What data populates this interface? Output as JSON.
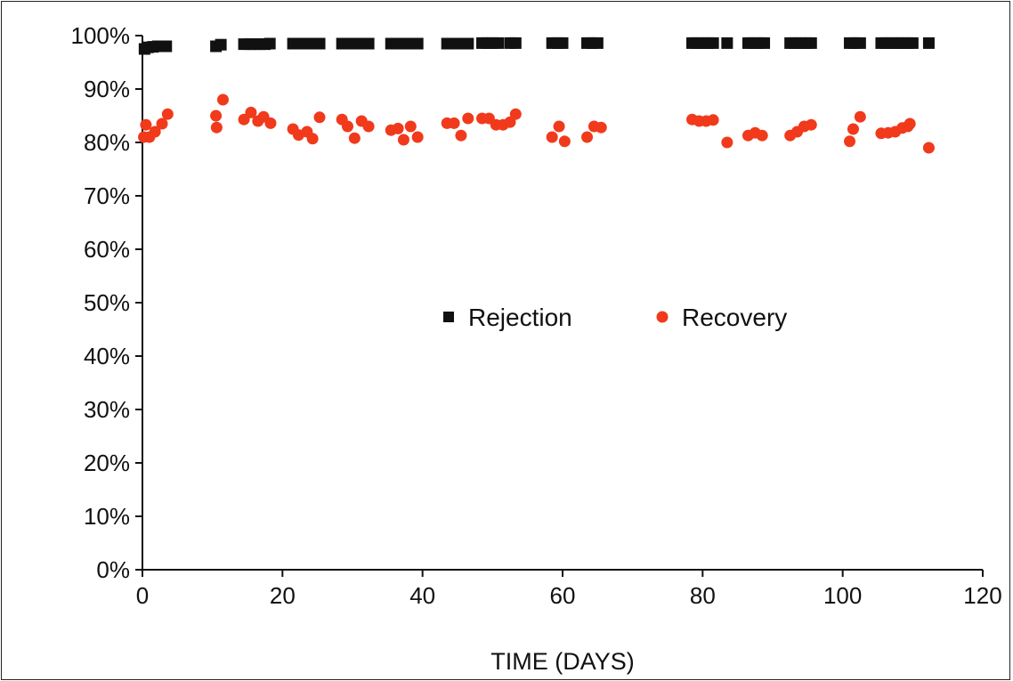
{
  "chart_data": {
    "type": "scatter",
    "title": "",
    "xlabel": "TIME (DAYS)",
    "ylabel": "",
    "xlim": [
      0,
      120
    ],
    "ylim": [
      0,
      100
    ],
    "x_ticks": [
      "0",
      "20",
      "40",
      "60",
      "80",
      "100",
      "120"
    ],
    "y_ticks": [
      "0%",
      "10%",
      "20%",
      "30%",
      "40%",
      "50%",
      "60%",
      "70%",
      "80%",
      "90%",
      "100%"
    ],
    "grid": false,
    "legend_position": "center",
    "colors": {
      "Rejection": "#111111",
      "Recovery": "#f03a1b"
    },
    "series": [
      {
        "name": "Rejection",
        "marker": "square",
        "points": [
          [
            0.3,
            97.5
          ],
          [
            0.8,
            97.8
          ],
          [
            1.5,
            97.9
          ],
          [
            2.2,
            98.0
          ],
          [
            2.8,
            98.0
          ],
          [
            3.4,
            98.0
          ],
          [
            10.5,
            98.0
          ],
          [
            11.2,
            98.3
          ],
          [
            14.5,
            98.4
          ],
          [
            15.3,
            98.4
          ],
          [
            16.0,
            98.4
          ],
          [
            16.8,
            98.4
          ],
          [
            17.5,
            98.4
          ],
          [
            18.2,
            98.5
          ],
          [
            21.5,
            98.5
          ],
          [
            22.2,
            98.5
          ],
          [
            23.0,
            98.5
          ],
          [
            23.8,
            98.5
          ],
          [
            24.5,
            98.5
          ],
          [
            25.3,
            98.5
          ],
          [
            28.5,
            98.5
          ],
          [
            29.2,
            98.5
          ],
          [
            30.0,
            98.5
          ],
          [
            30.8,
            98.5
          ],
          [
            31.5,
            98.5
          ],
          [
            32.3,
            98.5
          ],
          [
            35.5,
            98.5
          ],
          [
            36.2,
            98.5
          ],
          [
            37.0,
            98.5
          ],
          [
            37.8,
            98.5
          ],
          [
            38.5,
            98.5
          ],
          [
            39.3,
            98.5
          ],
          [
            43.5,
            98.5
          ],
          [
            44.2,
            98.5
          ],
          [
            45.0,
            98.5
          ],
          [
            45.8,
            98.5
          ],
          [
            46.5,
            98.5
          ],
          [
            48.5,
            98.6
          ],
          [
            49.2,
            98.6
          ],
          [
            50.0,
            98.6
          ],
          [
            50.8,
            98.6
          ],
          [
            52.5,
            98.6
          ],
          [
            53.3,
            98.6
          ],
          [
            58.5,
            98.6
          ],
          [
            59.3,
            98.6
          ],
          [
            60.0,
            98.6
          ],
          [
            63.5,
            98.6
          ],
          [
            64.2,
            98.6
          ],
          [
            65.0,
            98.6
          ],
          [
            78.5,
            98.6
          ],
          [
            79.2,
            98.6
          ],
          [
            80.0,
            98.6
          ],
          [
            80.8,
            98.6
          ],
          [
            81.5,
            98.6
          ],
          [
            83.5,
            98.6
          ],
          [
            86.5,
            98.6
          ],
          [
            87.2,
            98.6
          ],
          [
            88.0,
            98.6
          ],
          [
            88.8,
            98.6
          ],
          [
            92.5,
            98.6
          ],
          [
            93.2,
            98.6
          ],
          [
            94.0,
            98.6
          ],
          [
            94.8,
            98.6
          ],
          [
            95.5,
            98.6
          ],
          [
            101.0,
            98.6
          ],
          [
            101.7,
            98.6
          ],
          [
            102.5,
            98.6
          ],
          [
            105.5,
            98.6
          ],
          [
            106.2,
            98.6
          ],
          [
            107.0,
            98.6
          ],
          [
            107.8,
            98.6
          ],
          [
            108.5,
            98.6
          ],
          [
            109.3,
            98.6
          ],
          [
            110.0,
            98.6
          ],
          [
            112.3,
            98.6
          ]
        ]
      },
      {
        "name": "Recovery",
        "marker": "circle",
        "points": [
          [
            0.2,
            81.0
          ],
          [
            0.5,
            83.3
          ],
          [
            1.0,
            81.0
          ],
          [
            1.8,
            82.0
          ],
          [
            2.8,
            83.5
          ],
          [
            3.6,
            85.3
          ],
          [
            10.5,
            85.0
          ],
          [
            10.6,
            82.8
          ],
          [
            11.5,
            88.0
          ],
          [
            14.5,
            84.3
          ],
          [
            15.5,
            85.6
          ],
          [
            16.5,
            84.0
          ],
          [
            17.3,
            84.8
          ],
          [
            18.3,
            83.6
          ],
          [
            21.5,
            82.5
          ],
          [
            22.3,
            81.4
          ],
          [
            23.5,
            82.0
          ],
          [
            24.3,
            80.7
          ],
          [
            25.3,
            84.7
          ],
          [
            28.5,
            84.3
          ],
          [
            29.3,
            83.0
          ],
          [
            30.3,
            80.8
          ],
          [
            31.3,
            84.0
          ],
          [
            32.3,
            83.0
          ],
          [
            35.5,
            82.3
          ],
          [
            36.5,
            82.6
          ],
          [
            37.3,
            80.5
          ],
          [
            38.3,
            83.0
          ],
          [
            39.3,
            81.0
          ],
          [
            43.5,
            83.6
          ],
          [
            44.5,
            83.6
          ],
          [
            45.5,
            81.3
          ],
          [
            46.5,
            84.5
          ],
          [
            48.5,
            84.5
          ],
          [
            49.5,
            84.5
          ],
          [
            50.5,
            83.3
          ],
          [
            51.5,
            83.3
          ],
          [
            52.5,
            83.8
          ],
          [
            53.3,
            85.3
          ],
          [
            58.5,
            81.0
          ],
          [
            59.5,
            83.0
          ],
          [
            60.3,
            80.2
          ],
          [
            63.5,
            81.0
          ],
          [
            64.5,
            83.0
          ],
          [
            65.5,
            82.8
          ],
          [
            78.5,
            84.3
          ],
          [
            79.5,
            84.0
          ],
          [
            80.5,
            84.0
          ],
          [
            81.5,
            84.2
          ],
          [
            83.5,
            80.0
          ],
          [
            86.5,
            81.3
          ],
          [
            87.5,
            81.8
          ],
          [
            88.5,
            81.3
          ],
          [
            92.5,
            81.3
          ],
          [
            93.5,
            82.0
          ],
          [
            94.5,
            83.0
          ],
          [
            95.5,
            83.3
          ],
          [
            101.0,
            80.2
          ],
          [
            101.5,
            82.5
          ],
          [
            102.5,
            84.8
          ],
          [
            105.5,
            81.7
          ],
          [
            106.5,
            81.8
          ],
          [
            107.5,
            82.0
          ],
          [
            108.5,
            82.7
          ],
          [
            109.3,
            83.0
          ],
          [
            109.6,
            83.5
          ],
          [
            112.3,
            79.0
          ]
        ]
      }
    ]
  }
}
